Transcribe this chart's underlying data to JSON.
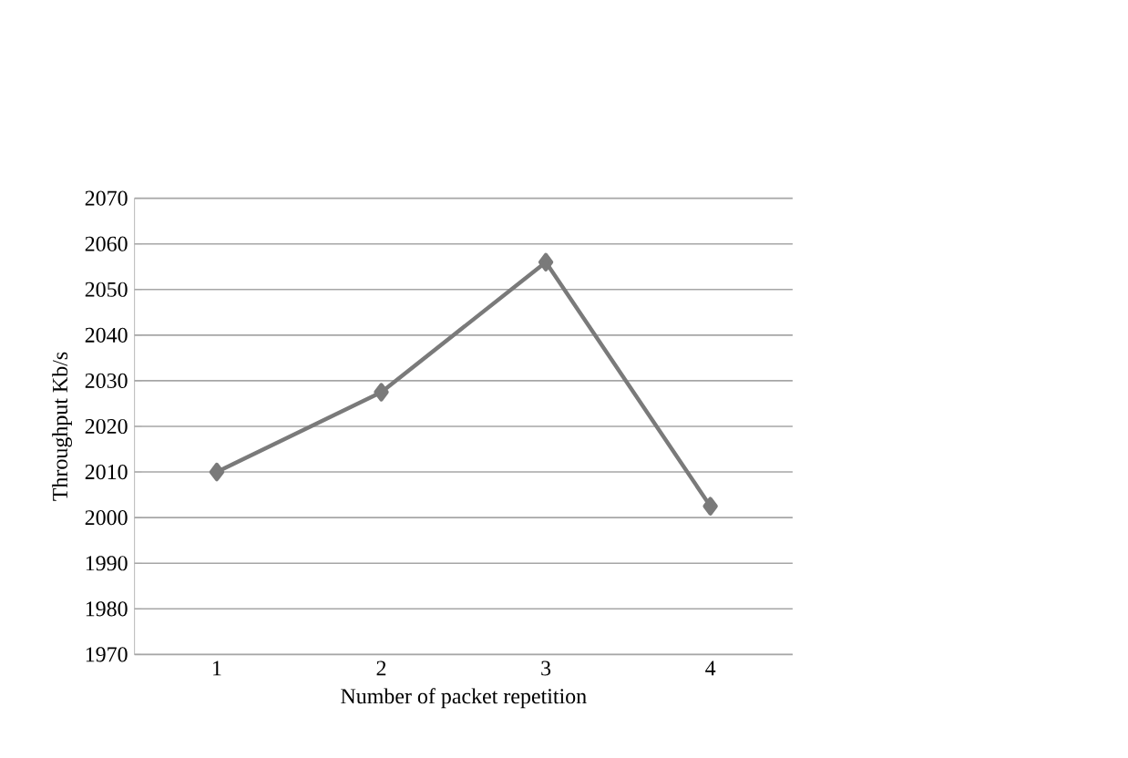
{
  "chart_data": {
    "type": "line",
    "xlabel": "Number of packet repetition",
    "ylabel": "Throughput Kb/s",
    "categories": [
      "1",
      "2",
      "3",
      "4"
    ],
    "series": [
      {
        "color": "#7a7a7a",
        "values": [
          2010,
          2027.5,
          2056,
          2002.5
        ]
      }
    ],
    "ylim": [
      1970,
      2070
    ],
    "yticks": [
      1970,
      1980,
      1990,
      2000,
      2010,
      2020,
      2030,
      2040,
      2050,
      2060,
      2070
    ],
    "grid": "y",
    "marker": "diamond",
    "line_style": "solid"
  }
}
